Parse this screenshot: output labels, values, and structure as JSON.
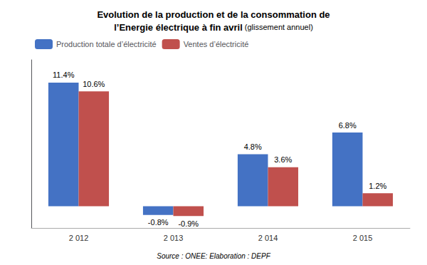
{
  "chart_data": {
    "type": "bar",
    "title": "Evolution de la production et de la consommation de\nl’Energie électrique à fin avril",
    "subtitle": "(glissement annuel)",
    "categories": [
      "2 012",
      "2 013",
      "2 014",
      "2 015"
    ],
    "series": [
      {
        "name": "Production totale d’électricité",
        "color": "#4472C4",
        "values": [
          11.4,
          -0.8,
          4.8,
          6.8
        ],
        "value_labels": [
          "11.4%",
          "-0.8%",
          "4.8%",
          "6.8%"
        ]
      },
      {
        "name": "Ventes d’électricité",
        "color": "#C0504D",
        "values": [
          10.6,
          -0.9,
          3.6,
          1.2
        ],
        "value_labels": [
          "10.6%",
          "-0.9%",
          "3.6%",
          "1.2%"
        ]
      }
    ],
    "ylim": [
      -2.0,
      13.5
    ],
    "yticks": [],
    "tick_labels": "x",
    "grid": false,
    "legend": "upper left",
    "data_labels": true,
    "annotations": [
      "Source : ONEE: Elaboration : DEPF"
    ]
  }
}
